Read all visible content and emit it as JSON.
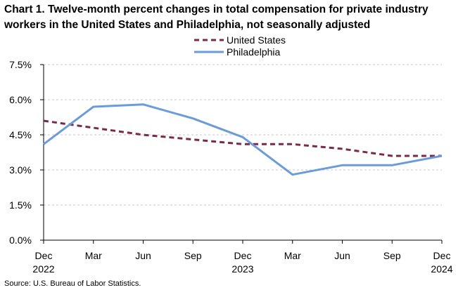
{
  "chart_data": {
    "type": "line",
    "title": "Chart 1. Twelve-month percent changes in total compensation for private industry workers in the United States and Philadelphia, not seasonally adjusted",
    "categories": [
      "Dec",
      "Mar",
      "Jun",
      "Sep",
      "Dec",
      "Mar",
      "Jun",
      "Sep",
      "Dec"
    ],
    "category_years": [
      "2022",
      "",
      "",
      "",
      "2023",
      "",
      "",
      "",
      "2024"
    ],
    "ylim": [
      0,
      7.5
    ],
    "yticks": [
      "0.0%",
      "1.5%",
      "3.0%",
      "4.5%",
      "6.0%",
      "7.5%"
    ],
    "ytick_values": [
      0,
      1.5,
      3.0,
      4.5,
      6.0,
      7.5
    ],
    "grid": true,
    "legend_position": "top-center",
    "series": [
      {
        "name": "United States",
        "style": "dashed",
        "color": "#7b2a4a",
        "values": [
          5.1,
          4.8,
          4.5,
          4.3,
          4.1,
          4.1,
          3.9,
          3.6,
          3.6
        ]
      },
      {
        "name": "Philadelphia",
        "style": "solid",
        "color": "#6b9bd8",
        "values": [
          4.1,
          5.7,
          5.8,
          5.2,
          4.4,
          2.8,
          3.2,
          3.2,
          3.6
        ]
      }
    ],
    "source": "Source: U.S. Bureau of Labor Statistics."
  }
}
